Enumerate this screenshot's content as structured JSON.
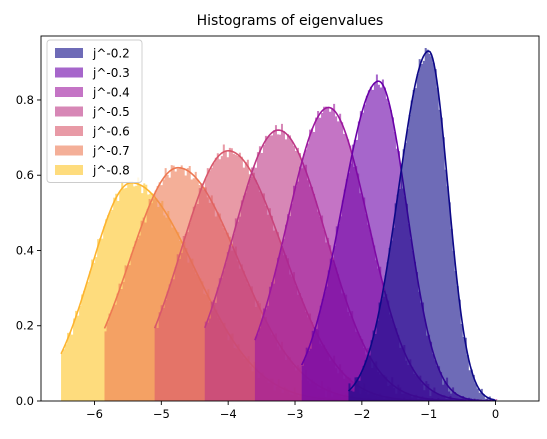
{
  "chart_data": {
    "type": "area",
    "title": "Histograms of eigenvalues",
    "xlabel": "",
    "ylabel": "",
    "xlim": [
      -6.8,
      0.65
    ],
    "ylim": [
      0,
      0.97
    ],
    "x_ticks": [
      -6,
      -5,
      -4,
      -3,
      -2,
      -1,
      0
    ],
    "y_ticks": [
      0.0,
      0.2,
      0.4,
      0.6,
      0.8
    ],
    "x_tick_labels": [
      "−6",
      "−5",
      "−4",
      "−3",
      "−2",
      "−1",
      "0"
    ],
    "y_tick_labels": [
      "0.0",
      "0.2",
      "0.4",
      "0.6",
      "0.8"
    ],
    "legend_position": "upper-left",
    "grid": false,
    "series": [
      {
        "name": "j^-0.2",
        "fill_color": "#0d0887",
        "line_color": "#0d0887",
        "peak_x": -1.0,
        "peak_y": 0.93,
        "left_sigma": 0.45,
        "right_sigma": 0.29,
        "x_start": -2.2,
        "x_end": 0.0
      },
      {
        "name": "j^-0.3",
        "fill_color": "#6a00a8",
        "line_color": "#6a00a8",
        "peak_x": -1.75,
        "peak_y": 0.85,
        "left_sigma": 0.55,
        "right_sigma": 0.42,
        "x_start": -2.9,
        "x_end": 0.0
      },
      {
        "name": "j^-0.4",
        "fill_color": "#9c179e",
        "line_color": "#9c179e",
        "peak_x": -2.5,
        "peak_y": 0.78,
        "left_sigma": 0.62,
        "right_sigma": 0.6,
        "x_start": -3.6,
        "x_end": 0.0
      },
      {
        "name": "j^-0.5",
        "fill_color": "#bd3786",
        "line_color": "#bd3786",
        "peak_x": -3.25,
        "peak_y": 0.72,
        "left_sigma": 0.68,
        "right_sigma": 0.72,
        "x_start": -4.35,
        "x_end": 0.0
      },
      {
        "name": "j^-0.6",
        "fill_color": "#d8576b",
        "line_color": "#d8576b",
        "peak_x": -4.0,
        "peak_y": 0.665,
        "left_sigma": 0.7,
        "right_sigma": 0.82,
        "x_start": -5.1,
        "x_end": 0.0
      },
      {
        "name": "j^-0.7",
        "fill_color": "#ed7953",
        "line_color": "#ed7953",
        "peak_x": -4.75,
        "peak_y": 0.62,
        "left_sigma": 0.72,
        "right_sigma": 0.9,
        "x_start": -5.85,
        "x_end": 0.0
      },
      {
        "name": "j^-0.8",
        "fill_color": "#fdc527",
        "line_color": "#fdb42f",
        "peak_x": -5.45,
        "peak_y": 0.58,
        "left_sigma": 0.6,
        "right_sigma": 0.95,
        "x_start": -6.5,
        "x_end": 0.0
      }
    ]
  }
}
